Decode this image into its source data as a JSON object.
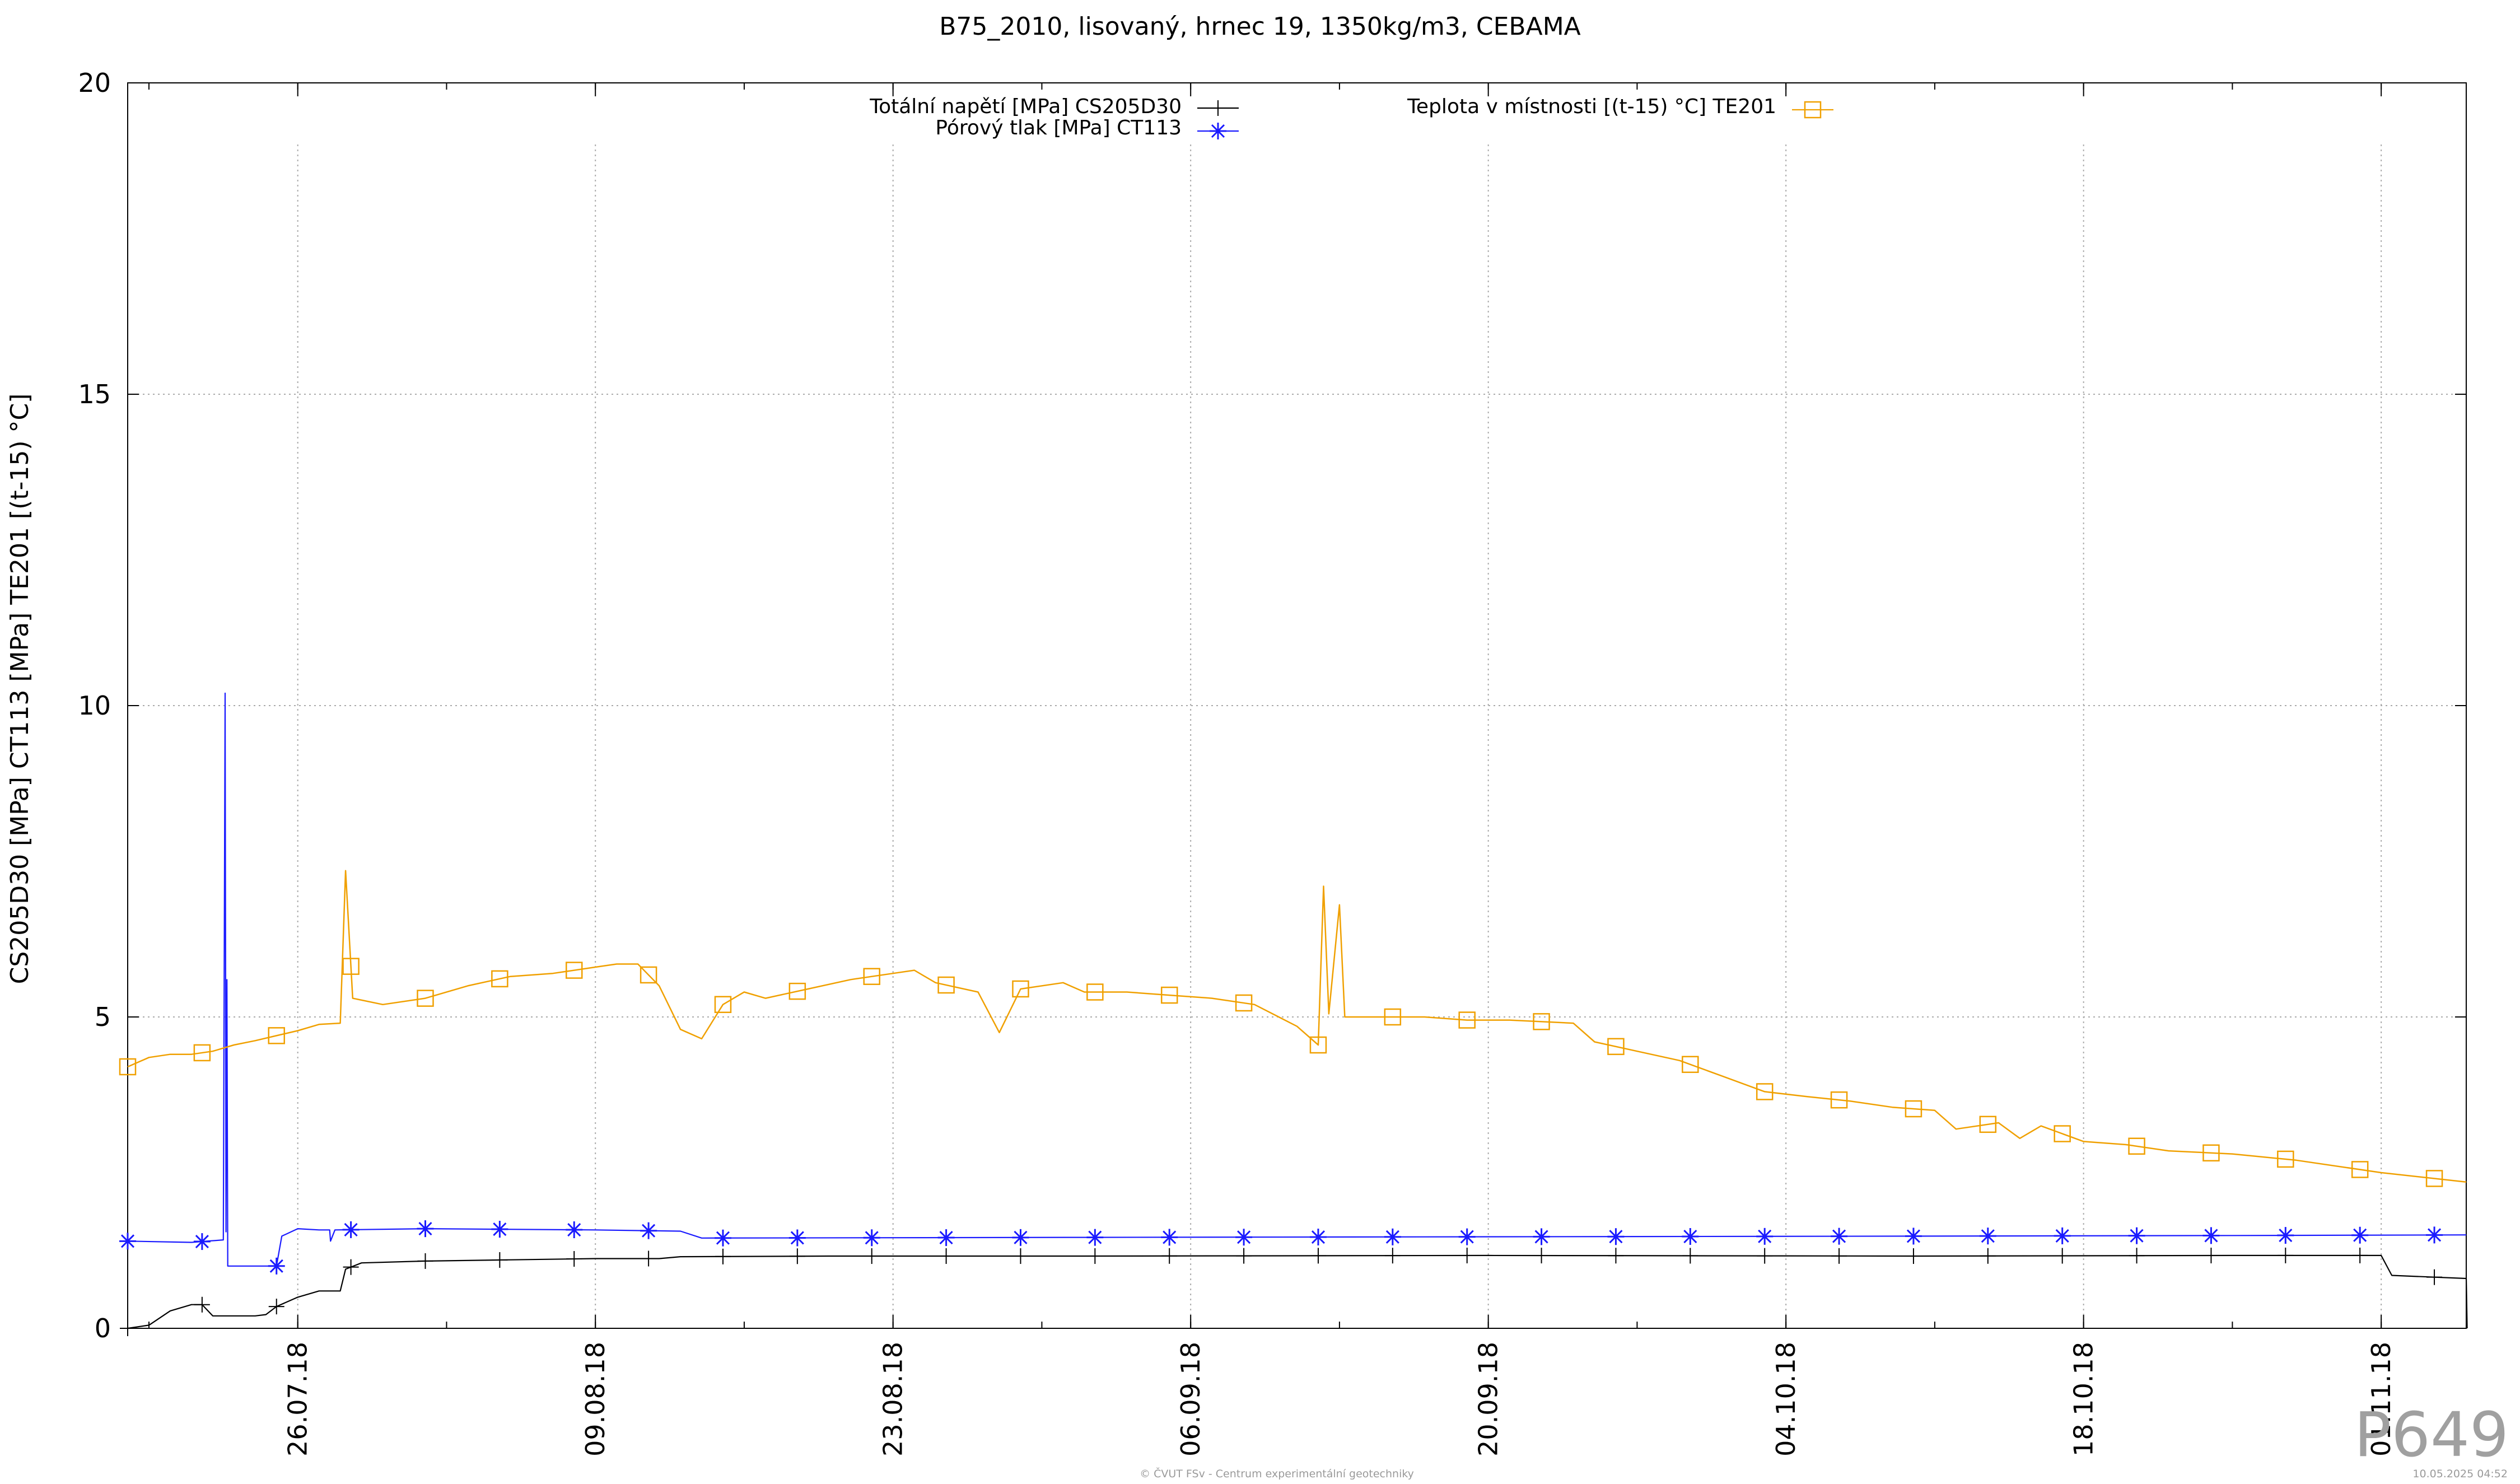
{
  "chart_data": {
    "type": "line",
    "title": "B75_2010, lisovaný, hrnec 19, 1350kg/m3, CEBAMA",
    "ylabel": "CS205D30 [MPa] CT113 [MPa] TE201 [(t-15) °C]",
    "xlabel": "",
    "ylim": [
      0,
      20
    ],
    "yticks": [
      0,
      5,
      10,
      15,
      20
    ],
    "xlim": [
      "2018-07-18",
      "2018-11-05"
    ],
    "xticks": [
      "26.07.18",
      "09.08.18",
      "23.08.18",
      "06.09.18",
      "20.09.18",
      "04.10.18",
      "18.10.18",
      "01.11.18"
    ],
    "grid": true,
    "legend_placement": "top",
    "series": [
      {
        "name": "Totální napětí [MPa] CS205D30",
        "color": "#000000",
        "marker": "plus",
        "points": [
          [
            "2018-07-18",
            0.0
          ],
          [
            "2018-07-19",
            0.05
          ],
          [
            "2018-07-20",
            0.28
          ],
          [
            "2018-07-21",
            0.38
          ],
          [
            "2018-07-21 12:00",
            0.38
          ],
          [
            "2018-07-22",
            0.2
          ],
          [
            "2018-07-23",
            0.2
          ],
          [
            "2018-07-24",
            0.2
          ],
          [
            "2018-07-24 12:00",
            0.22
          ],
          [
            "2018-07-25",
            0.35
          ],
          [
            "2018-07-26",
            0.5
          ],
          [
            "2018-07-27",
            0.6
          ],
          [
            "2018-07-28",
            0.6
          ],
          [
            "2018-07-28 06:00",
            0.95
          ],
          [
            "2018-07-29",
            1.05
          ],
          [
            "2018-08-01",
            1.08
          ],
          [
            "2018-08-05",
            1.1
          ],
          [
            "2018-08-09",
            1.12
          ],
          [
            "2018-08-12",
            1.12
          ],
          [
            "2018-08-13",
            1.15
          ],
          [
            "2018-08-20",
            1.16
          ],
          [
            "2018-09-01",
            1.16
          ],
          [
            "2018-09-20",
            1.17
          ],
          [
            "2018-10-10",
            1.16
          ],
          [
            "2018-10-25",
            1.17
          ],
          [
            "2018-11-01",
            1.17
          ],
          [
            "2018-11-01 12:00",
            0.85
          ],
          [
            "2018-11-05",
            0.8
          ],
          [
            "2018-11-05 01:00",
            0.0
          ]
        ]
      },
      {
        "name": "Pórový tlak [MPa] CT113",
        "color": "#1a1aff",
        "marker": "star",
        "points": [
          [
            "2018-07-18",
            1.4
          ],
          [
            "2018-07-21",
            1.38
          ],
          [
            "2018-07-22 12:00",
            1.42
          ],
          [
            "2018-07-22 14:00",
            10.2
          ],
          [
            "2018-07-22 15:00",
            1.55
          ],
          [
            "2018-07-22 16:00",
            5.6
          ],
          [
            "2018-07-22 17:00",
            1.0
          ],
          [
            "2018-07-25",
            1.0
          ],
          [
            "2018-07-25 06:00",
            1.48
          ],
          [
            "2018-07-26",
            1.6
          ],
          [
            "2018-07-27",
            1.58
          ],
          [
            "2018-07-27 12:00",
            1.58
          ],
          [
            "2018-07-27 13:00",
            1.4
          ],
          [
            "2018-07-27 18:00",
            1.58
          ],
          [
            "2018-08-01",
            1.6
          ],
          [
            "2018-08-09",
            1.58
          ],
          [
            "2018-08-13",
            1.56
          ],
          [
            "2018-08-14",
            1.45
          ],
          [
            "2018-09-01",
            1.46
          ],
          [
            "2018-09-20",
            1.47
          ],
          [
            "2018-10-10",
            1.48
          ],
          [
            "2018-10-25",
            1.49
          ],
          [
            "2018-11-05",
            1.5
          ]
        ]
      },
      {
        "name": "Teplota v místnosti [(t-15) °C] TE201",
        "color": "#f0a000",
        "marker": "square",
        "points": [
          [
            "2018-07-18",
            4.2
          ],
          [
            "2018-07-19",
            4.35
          ],
          [
            "2018-07-20",
            4.4
          ],
          [
            "2018-07-21",
            4.4
          ],
          [
            "2018-07-22",
            4.45
          ],
          [
            "2018-07-23",
            4.55
          ],
          [
            "2018-07-24",
            4.62
          ],
          [
            "2018-07-25",
            4.7
          ],
          [
            "2018-07-26",
            4.78
          ],
          [
            "2018-07-27",
            4.88
          ],
          [
            "2018-07-28",
            4.9
          ],
          [
            "2018-07-28 06:00",
            7.35
          ],
          [
            "2018-07-28 14:00",
            5.3
          ],
          [
            "2018-07-30",
            5.2
          ],
          [
            "2018-08-01",
            5.3
          ],
          [
            "2018-08-03",
            5.5
          ],
          [
            "2018-08-05",
            5.65
          ],
          [
            "2018-08-07",
            5.7
          ],
          [
            "2018-08-09",
            5.8
          ],
          [
            "2018-08-10",
            5.85
          ],
          [
            "2018-08-11",
            5.85
          ],
          [
            "2018-08-12",
            5.5
          ],
          [
            "2018-08-13",
            4.8
          ],
          [
            "2018-08-14",
            4.65
          ],
          [
            "2018-08-15",
            5.2
          ],
          [
            "2018-08-16",
            5.4
          ],
          [
            "2018-08-17",
            5.3
          ],
          [
            "2018-08-19",
            5.45
          ],
          [
            "2018-08-21",
            5.6
          ],
          [
            "2018-08-23",
            5.7
          ],
          [
            "2018-08-24",
            5.75
          ],
          [
            "2018-08-25",
            5.55
          ],
          [
            "2018-08-27",
            5.4
          ],
          [
            "2018-08-28",
            4.75
          ],
          [
            "2018-08-29",
            5.45
          ],
          [
            "2018-08-31",
            5.55
          ],
          [
            "2018-09-01",
            5.4
          ],
          [
            "2018-09-03",
            5.4
          ],
          [
            "2018-09-05",
            5.35
          ],
          [
            "2018-09-07",
            5.3
          ],
          [
            "2018-09-09",
            5.2
          ],
          [
            "2018-09-11",
            4.85
          ],
          [
            "2018-09-12",
            4.55
          ],
          [
            "2018-09-12 06:00",
            7.1
          ],
          [
            "2018-09-12 12:00",
            5.05
          ],
          [
            "2018-09-13",
            6.8
          ],
          [
            "2018-09-13 06:00",
            5.0
          ],
          [
            "2018-09-15",
            5.0
          ],
          [
            "2018-09-17",
            5.0
          ],
          [
            "2018-09-19",
            4.95
          ],
          [
            "2018-09-21",
            4.95
          ],
          [
            "2018-09-24",
            4.9
          ],
          [
            "2018-09-25",
            4.6
          ],
          [
            "2018-09-27",
            4.45
          ],
          [
            "2018-09-29",
            4.3
          ],
          [
            "2018-10-01",
            4.05
          ],
          [
            "2018-10-03",
            3.8
          ],
          [
            "2018-10-05",
            3.72
          ],
          [
            "2018-10-07",
            3.65
          ],
          [
            "2018-10-09",
            3.55
          ],
          [
            "2018-10-11",
            3.5
          ],
          [
            "2018-10-12",
            3.2
          ],
          [
            "2018-10-14",
            3.3
          ],
          [
            "2018-10-15",
            3.05
          ],
          [
            "2018-10-16",
            3.25
          ],
          [
            "2018-10-18",
            3.0
          ],
          [
            "2018-10-20",
            2.95
          ],
          [
            "2018-10-22",
            2.85
          ],
          [
            "2018-10-25",
            2.8
          ],
          [
            "2018-10-28",
            2.7
          ],
          [
            "2018-11-01",
            2.5
          ],
          [
            "2018-11-05",
            2.35
          ]
        ]
      }
    ]
  },
  "watermark": "P649",
  "footer": {
    "center": "© ČVUT FSv - Centrum experimentální geotechniky",
    "right": "10.05.2025 04:52"
  },
  "colors": {
    "total_stress": "#000000",
    "pore_pressure": "#1a1aff",
    "temperature": "#f0a000",
    "grid": "#aaaaaa",
    "watermark": "#a0a0a0"
  }
}
